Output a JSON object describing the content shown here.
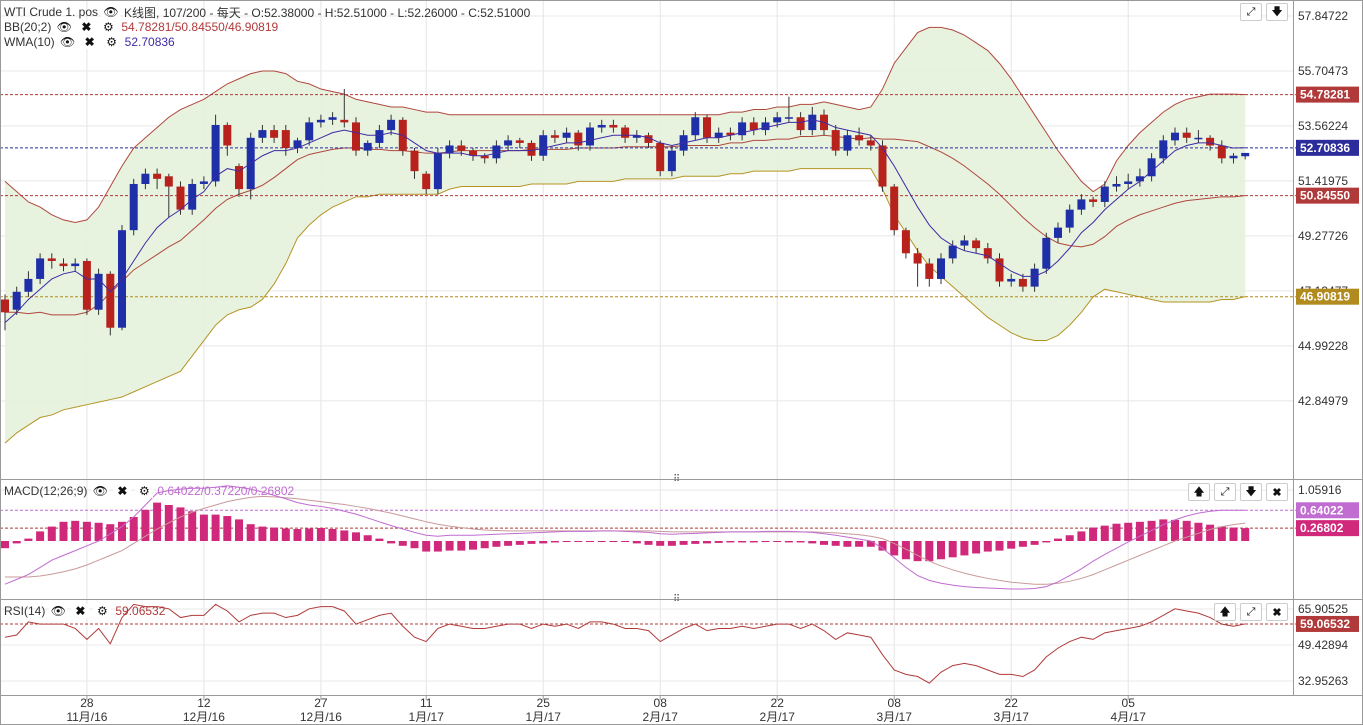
{
  "main_pane": {
    "title": "WTI Crude 1. pos",
    "candle_info": "K线图, 107/200 - 每天 - O:52.38000 - H:52.51000 - L:52.26000 - C:52.51000",
    "bb_label": "BB(20;2)",
    "bb_values": "54.78281/50.84550/46.90819",
    "wma_label": "WMA(10)",
    "wma_value": "52.70836",
    "y_ticks": [
      "57.84722",
      "55.70473",
      "53.56224",
      "51.41975",
      "49.27726",
      "47.13477",
      "44.99228",
      "42.84979"
    ],
    "y_tick_values": [
      57.84722,
      55.70473,
      53.56224,
      51.41975,
      49.27726,
      47.13477,
      44.99228,
      42.84979
    ],
    "markers": [
      {
        "value": "54.78281",
        "level": 54.78281,
        "color": "#b03a3a"
      },
      {
        "value": "52.70836",
        "level": 52.70836,
        "color": "#2c2c9a"
      },
      {
        "value": "50.84550",
        "level": 50.8455,
        "color": "#b03a3a"
      },
      {
        "value": "46.90819",
        "level": 46.90819,
        "color": "#b28b1e"
      }
    ]
  },
  "macd_pane": {
    "label": "MACD(12;26;9)",
    "values": "0.64022/0.37220/0.26802",
    "y_ticks": [
      "1.05916"
    ],
    "markers": [
      {
        "value": "0.64022",
        "color": "#c06cd0"
      },
      {
        "value": "0.26802",
        "color": "#d0287a"
      }
    ]
  },
  "rsi_pane": {
    "label": "RSI(14)",
    "value": "59.06532",
    "y_ticks": [
      "65.90525",
      "49.42894",
      "32.95263"
    ],
    "y_tick_values": [
      65.90525,
      49.42894,
      32.95263
    ],
    "marker": {
      "value": "59.06532",
      "level": 59.06532,
      "color": "#b03a3a"
    }
  },
  "x_axis": {
    "ticks": [
      {
        "day": "28",
        "month": "11月/16",
        "index": 7
      },
      {
        "day": "12",
        "month": "12月/16",
        "index": 17
      },
      {
        "day": "27",
        "month": "12月/16",
        "index": 27
      },
      {
        "day": "11",
        "month": "1月/17",
        "index": 36
      },
      {
        "day": "25",
        "month": "1月/17",
        "index": 46
      },
      {
        "day": "08",
        "month": "2月/17",
        "index": 56
      },
      {
        "day": "22",
        "month": "2月/17",
        "index": 66
      },
      {
        "day": "08",
        "month": "3月/17",
        "index": 76
      },
      {
        "day": "22",
        "month": "3月/17",
        "index": 86
      },
      {
        "day": "05",
        "month": "4月/17",
        "index": 96
      }
    ]
  },
  "colors": {
    "up": "#1f2fa8",
    "down": "#b8221c",
    "bb_fill": "#e4f2dc",
    "bb_upper": "#b0473d",
    "bb_lower": "#b59426",
    "wma": "#3f2aa6",
    "macd_hist": "#d0287a",
    "macd_line": "#c06cd0",
    "macd_signal": "#c99a9a",
    "rsi": "#b03a3a"
  },
  "chart_data": [
    {
      "type": "candlestick",
      "title": "WTI Crude 1. pos",
      "series": [
        {
          "name": "BB(20;2)"
        },
        {
          "name": "WMA(10)"
        }
      ],
      "close": [
        46.3,
        47.1,
        47.6,
        48.4,
        48.3,
        48.1,
        48.2,
        46.4,
        47.8,
        45.7,
        49.5,
        51.3,
        51.7,
        51.5,
        51.2,
        50.3,
        51.3,
        51.4,
        53.6,
        52.8,
        51.1,
        53.1,
        53.4,
        53.1,
        52.7,
        53.0,
        53.7,
        53.8,
        53.9,
        53.7,
        52.6,
        52.9,
        53.4,
        53.8,
        52.6,
        51.8,
        51.1,
        52.5,
        52.8,
        52.6,
        52.4,
        52.3,
        52.8,
        53.0,
        52.9,
        52.4,
        53.2,
        53.1,
        53.3,
        52.8,
        53.5,
        53.6,
        53.5,
        53.1,
        53.2,
        52.9,
        51.8,
        52.6,
        53.2,
        53.9,
        53.1,
        53.3,
        53.2,
        53.7,
        53.4,
        53.7,
        53.9,
        53.9,
        53.4,
        54.0,
        53.4,
        52.6,
        53.2,
        53.0,
        52.8,
        51.2,
        49.5,
        48.6,
        48.2,
        47.6,
        48.4,
        48.9,
        49.1,
        48.8,
        48.4,
        47.5,
        47.6,
        47.3,
        48.0,
        49.2,
        49.6,
        50.3,
        50.7,
        50.6,
        51.2,
        51.3,
        51.4,
        51.6,
        52.3,
        53.0,
        53.3,
        53.1,
        53.1,
        52.8,
        52.3,
        52.4,
        52.51
      ],
      "open": [
        46.8,
        46.4,
        47.1,
        47.6,
        48.4,
        48.2,
        48.1,
        48.3,
        46.4,
        47.8,
        45.7,
        49.5,
        51.3,
        51.7,
        51.6,
        51.2,
        50.3,
        51.3,
        51.4,
        53.6,
        52.0,
        51.1,
        53.1,
        53.4,
        53.4,
        52.7,
        53.0,
        53.7,
        53.8,
        53.8,
        53.7,
        52.6,
        52.9,
        53.4,
        53.8,
        52.6,
        51.7,
        51.1,
        52.5,
        52.8,
        52.6,
        52.4,
        52.3,
        52.8,
        53.0,
        52.9,
        52.4,
        53.2,
        53.1,
        53.3,
        52.8,
        53.5,
        53.6,
        53.5,
        53.1,
        53.2,
        52.9,
        51.8,
        52.6,
        53.2,
        53.9,
        53.1,
        53.3,
        53.2,
        53.7,
        53.4,
        53.7,
        53.9,
        53.9,
        53.4,
        54.0,
        53.4,
        52.6,
        53.2,
        53.0,
        52.8,
        51.2,
        49.5,
        48.6,
        48.2,
        47.6,
        48.4,
        48.9,
        49.1,
        48.8,
        48.4,
        47.5,
        47.6,
        47.3,
        48.0,
        49.2,
        49.6,
        50.3,
        50.7,
        50.6,
        51.2,
        51.3,
        51.4,
        51.6,
        52.3,
        53.0,
        53.3,
        53.1,
        53.1,
        52.8,
        52.3,
        52.38
      ],
      "high": [
        47.0,
        47.3,
        47.9,
        48.6,
        48.6,
        48.4,
        48.4,
        48.4,
        48.0,
        47.9,
        49.7,
        51.5,
        51.9,
        51.9,
        51.7,
        51.4,
        51.5,
        51.6,
        54.0,
        53.7,
        52.1,
        53.3,
        53.6,
        53.6,
        53.6,
        53.1,
        53.9,
        54.0,
        54.1,
        55.0,
        53.9,
        53.0,
        53.6,
        54.0,
        53.9,
        52.7,
        51.8,
        52.7,
        53.0,
        53.0,
        52.7,
        52.5,
        53.0,
        53.2,
        53.1,
        53.0,
        53.4,
        53.4,
        53.5,
        53.4,
        53.7,
        53.8,
        53.8,
        53.6,
        53.4,
        53.3,
        53.0,
        52.8,
        53.4,
        54.1,
        54.0,
        53.5,
        53.5,
        53.9,
        53.9,
        53.9,
        54.1,
        54.7,
        54.1,
        54.3,
        54.2,
        53.6,
        53.4,
        53.5,
        53.2,
        53.0,
        51.3,
        49.6,
        48.8,
        48.4,
        48.6,
        49.1,
        49.3,
        49.2,
        49.0,
        48.6,
        47.8,
        47.8,
        48.2,
        49.4,
        49.8,
        50.5,
        50.9,
        50.8,
        51.4,
        51.6,
        51.7,
        51.9,
        52.5,
        53.2,
        53.5,
        53.5,
        53.4,
        53.2,
        53.0,
        52.5,
        52.51
      ],
      "low": [
        45.6,
        46.2,
        46.9,
        47.4,
        48.0,
        47.9,
        47.9,
        46.2,
        46.2,
        45.4,
        45.6,
        49.3,
        51.1,
        51.1,
        50.0,
        50.1,
        50.1,
        51.1,
        51.2,
        52.4,
        50.8,
        50.7,
        52.9,
        52.9,
        52.4,
        52.5,
        52.8,
        53.5,
        53.6,
        53.5,
        52.4,
        52.4,
        52.7,
        53.2,
        52.4,
        51.5,
        50.9,
        50.9,
        52.3,
        52.4,
        52.2,
        52.1,
        52.1,
        52.6,
        52.7,
        52.2,
        52.2,
        52.9,
        52.9,
        52.6,
        52.6,
        53.3,
        53.3,
        52.9,
        52.9,
        52.7,
        51.6,
        51.6,
        52.4,
        53.0,
        52.9,
        52.9,
        53.0,
        53.0,
        53.2,
        53.2,
        53.5,
        53.7,
        53.2,
        53.2,
        53.2,
        52.4,
        52.4,
        52.8,
        52.6,
        51.0,
        49.3,
        48.4,
        47.3,
        47.3,
        47.4,
        48.2,
        48.7,
        48.6,
        48.2,
        47.3,
        47.3,
        47.1,
        47.1,
        47.8,
        49.0,
        49.4,
        50.1,
        50.4,
        50.4,
        51.0,
        51.1,
        51.2,
        51.4,
        52.1,
        52.8,
        52.9,
        52.9,
        52.6,
        52.1,
        52.1,
        52.26
      ],
      "bb_upper": [
        51.4,
        51.0,
        50.6,
        50.4,
        50.1,
        49.9,
        49.8,
        49.9,
        50.4,
        51.2,
        52.0,
        52.7,
        53.1,
        53.5,
        53.9,
        54.2,
        54.4,
        54.6,
        54.9,
        55.2,
        55.4,
        55.6,
        55.7,
        55.7,
        55.6,
        55.3,
        55.2,
        55.0,
        54.9,
        54.8,
        54.6,
        54.5,
        54.4,
        54.3,
        54.3,
        54.2,
        54.1,
        54.1,
        54.0,
        54.0,
        54.0,
        54.0,
        54.0,
        54.0,
        54.0,
        54.0,
        54.0,
        54.0,
        54.0,
        54.0,
        54.0,
        54.0,
        54.0,
        54.0,
        54.0,
        54.0,
        54.0,
        54.0,
        54.0,
        54.0,
        54.0,
        54.0,
        54.1,
        54.1,
        54.2,
        54.2,
        54.3,
        54.3,
        54.4,
        54.4,
        54.5,
        54.4,
        54.3,
        54.2,
        54.3,
        55.0,
        56.0,
        56.6,
        57.2,
        57.4,
        57.4,
        57.3,
        57.1,
        56.8,
        56.5,
        56.0,
        55.4,
        54.7,
        54.0,
        53.3,
        52.6,
        52.0,
        51.4,
        51.0,
        51.3,
        52.2,
        52.8,
        53.3,
        53.7,
        54.1,
        54.4,
        54.6,
        54.7,
        54.8,
        54.8,
        54.8,
        54.78
      ],
      "bb_lower": [
        41.2,
        41.6,
        41.9,
        42.2,
        42.3,
        42.5,
        42.6,
        42.7,
        42.8,
        42.9,
        43.0,
        43.2,
        43.4,
        43.6,
        43.8,
        44.0,
        44.6,
        45.2,
        45.8,
        46.2,
        46.4,
        46.5,
        46.8,
        47.4,
        48.2,
        49.2,
        49.7,
        50.1,
        50.4,
        50.6,
        50.8,
        50.8,
        50.9,
        50.9,
        50.9,
        50.9,
        50.9,
        50.9,
        51.1,
        51.2,
        51.2,
        51.2,
        51.2,
        51.2,
        51.2,
        51.3,
        51.3,
        51.3,
        51.3,
        51.4,
        51.4,
        51.4,
        51.4,
        51.5,
        51.5,
        51.5,
        51.5,
        51.5,
        51.6,
        51.6,
        51.6,
        51.6,
        51.7,
        51.7,
        51.8,
        51.8,
        51.8,
        51.8,
        51.9,
        51.9,
        51.9,
        51.9,
        51.9,
        51.9,
        51.9,
        51.1,
        50.1,
        49.4,
        48.7,
        48.1,
        47.7,
        47.3,
        46.9,
        46.5,
        46.1,
        45.8,
        45.5,
        45.3,
        45.2,
        45.2,
        45.4,
        45.8,
        46.3,
        46.9,
        47.2,
        47.1,
        47.0,
        46.9,
        46.8,
        46.7,
        46.7,
        46.7,
        46.7,
        46.7,
        46.8,
        46.8,
        46.91
      ],
      "wma": [
        45.9,
        46.3,
        46.8,
        47.2,
        47.6,
        47.8,
        47.9,
        47.6,
        47.6,
        47.1,
        47.6,
        48.3,
        49.0,
        49.6,
        50.0,
        50.3,
        50.7,
        51.0,
        51.6,
        51.9,
        51.8,
        52.1,
        52.4,
        52.6,
        52.6,
        52.7,
        52.9,
        53.1,
        53.3,
        53.4,
        53.3,
        53.2,
        53.2,
        53.3,
        53.2,
        52.9,
        52.6,
        52.5,
        52.5,
        52.5,
        52.4,
        52.4,
        52.5,
        52.6,
        52.6,
        52.6,
        52.7,
        52.8,
        52.9,
        52.9,
        53.0,
        53.1,
        53.2,
        53.2,
        53.2,
        53.1,
        52.9,
        52.8,
        52.9,
        53.0,
        53.1,
        53.1,
        53.2,
        53.3,
        53.4,
        53.5,
        53.6,
        53.7,
        53.7,
        53.8,
        53.7,
        53.5,
        53.4,
        53.3,
        53.2,
        52.7,
        52.0,
        51.2,
        50.4,
        49.7,
        49.2,
        48.9,
        48.7,
        48.6,
        48.5,
        48.2,
        47.9,
        47.7,
        47.7,
        47.9,
        48.3,
        48.8,
        49.4,
        49.8,
        50.3,
        50.7,
        51.1,
        51.4,
        51.8,
        52.2,
        52.6,
        52.8,
        52.9,
        52.9,
        52.8,
        52.7,
        52.71
      ]
    },
    {
      "type": "bar",
      "title": "MACD(12;26;9)",
      "series": [
        {
          "name": "MACD(12;26;9)"
        }
      ],
      "histogram": [
        -0.15,
        -0.05,
        0.05,
        0.2,
        0.3,
        0.4,
        0.42,
        0.4,
        0.38,
        0.35,
        0.4,
        0.5,
        0.65,
        0.8,
        0.75,
        0.7,
        0.62,
        0.55,
        0.55,
        0.52,
        0.45,
        0.35,
        0.3,
        0.28,
        0.26,
        0.25,
        0.26,
        0.27,
        0.25,
        0.22,
        0.18,
        0.12,
        0.05,
        -0.05,
        -0.1,
        -0.15,
        -0.22,
        -0.22,
        -0.2,
        -0.2,
        -0.18,
        -0.15,
        -0.12,
        -0.1,
        -0.08,
        -0.06,
        -0.05,
        -0.03,
        -0.02,
        -0.02,
        -0.01,
        0.0,
        0.0,
        -0.02,
        -0.05,
        -0.08,
        -0.1,
        -0.1,
        -0.08,
        -0.06,
        -0.05,
        -0.04,
        -0.03,
        -0.03,
        -0.03,
        -0.02,
        -0.02,
        -0.03,
        -0.03,
        -0.05,
        -0.08,
        -0.1,
        -0.12,
        -0.12,
        -0.12,
        -0.2,
        -0.3,
        -0.38,
        -0.42,
        -0.42,
        -0.38,
        -0.34,
        -0.3,
        -0.26,
        -0.22,
        -0.2,
        -0.16,
        -0.12,
        -0.08,
        -0.03,
        0.05,
        0.12,
        0.2,
        0.28,
        0.32,
        0.36,
        0.38,
        0.4,
        0.42,
        0.45,
        0.44,
        0.42,
        0.38,
        0.34,
        0.3,
        0.28,
        0.268
      ],
      "macd": [
        -0.9,
        -0.8,
        -0.7,
        -0.55,
        -0.4,
        -0.3,
        -0.2,
        -0.1,
        0.0,
        0.15,
        0.3,
        0.5,
        0.75,
        1.0,
        1.05,
        1.08,
        1.1,
        1.1,
        1.12,
        1.15,
        1.12,
        1.08,
        1.02,
        0.95,
        0.88,
        0.8,
        0.75,
        0.72,
        0.68,
        0.62,
        0.56,
        0.48,
        0.4,
        0.32,
        0.25,
        0.18,
        0.12,
        0.1,
        0.12,
        0.12,
        0.12,
        0.13,
        0.14,
        0.15,
        0.16,
        0.17,
        0.18,
        0.19,
        0.2,
        0.2,
        0.2,
        0.21,
        0.21,
        0.2,
        0.19,
        0.18,
        0.15,
        0.14,
        0.15,
        0.16,
        0.17,
        0.18,
        0.19,
        0.19,
        0.19,
        0.2,
        0.2,
        0.2,
        0.19,
        0.18,
        0.15,
        0.12,
        0.08,
        0.04,
        0.0,
        -0.15,
        -0.35,
        -0.55,
        -0.72,
        -0.82,
        -0.88,
        -0.92,
        -0.95,
        -0.97,
        -0.98,
        -0.99,
        -1.0,
        -1.0,
        -0.99,
        -0.95,
        -0.85,
        -0.72,
        -0.58,
        -0.42,
        -0.28,
        -0.15,
        -0.02,
        0.1,
        0.22,
        0.34,
        0.44,
        0.52,
        0.58,
        0.62,
        0.64,
        0.64,
        0.64022
      ],
      "signal": [
        -0.75,
        -0.75,
        -0.75,
        -0.73,
        -0.69,
        -0.64,
        -0.58,
        -0.5,
        -0.4,
        -0.3,
        -0.2,
        -0.05,
        0.1,
        0.25,
        0.38,
        0.5,
        0.6,
        0.68,
        0.75,
        0.82,
        0.87,
        0.91,
        0.93,
        0.92,
        0.9,
        0.88,
        0.85,
        0.82,
        0.79,
        0.76,
        0.72,
        0.68,
        0.63,
        0.58,
        0.52,
        0.46,
        0.4,
        0.35,
        0.31,
        0.28,
        0.25,
        0.23,
        0.22,
        0.21,
        0.21,
        0.21,
        0.21,
        0.21,
        0.21,
        0.21,
        0.21,
        0.21,
        0.21,
        0.21,
        0.21,
        0.21,
        0.2,
        0.19,
        0.19,
        0.19,
        0.19,
        0.19,
        0.19,
        0.19,
        0.19,
        0.19,
        0.19,
        0.19,
        0.19,
        0.19,
        0.18,
        0.17,
        0.15,
        0.13,
        0.1,
        0.05,
        -0.05,
        -0.17,
        -0.3,
        -0.42,
        -0.52,
        -0.6,
        -0.67,
        -0.73,
        -0.78,
        -0.82,
        -0.86,
        -0.88,
        -0.9,
        -0.9,
        -0.88,
        -0.84,
        -0.78,
        -0.7,
        -0.6,
        -0.5,
        -0.4,
        -0.3,
        -0.2,
        -0.1,
        0.0,
        0.08,
        0.16,
        0.24,
        0.3,
        0.34,
        0.3722
      ]
    },
    {
      "type": "line",
      "title": "RSI(14)",
      "series": [
        {
          "name": "RSI(14)"
        }
      ],
      "rsi": [
        53,
        54,
        60,
        59,
        59,
        59,
        57,
        52,
        57,
        50,
        62,
        68,
        67,
        67,
        66,
        62,
        63,
        63,
        68,
        65,
        60,
        63,
        64,
        64,
        62,
        63,
        66,
        67,
        67,
        65,
        59,
        61,
        63,
        64,
        58,
        53,
        51,
        57,
        59,
        58,
        57,
        57,
        58,
        59,
        59,
        57,
        59,
        58,
        59,
        57,
        60,
        60,
        59,
        57,
        57,
        56,
        51,
        54,
        57,
        59,
        56,
        57,
        57,
        58,
        57,
        58,
        59,
        59,
        57,
        59,
        56,
        52,
        55,
        54,
        53,
        45,
        38,
        36,
        35,
        32,
        37,
        40,
        41,
        40,
        38,
        36,
        36,
        35,
        38,
        44,
        48,
        51,
        53,
        52,
        55,
        56,
        57,
        58,
        60,
        63,
        66,
        65,
        64,
        62,
        59,
        58,
        59.06532
      ]
    }
  ]
}
